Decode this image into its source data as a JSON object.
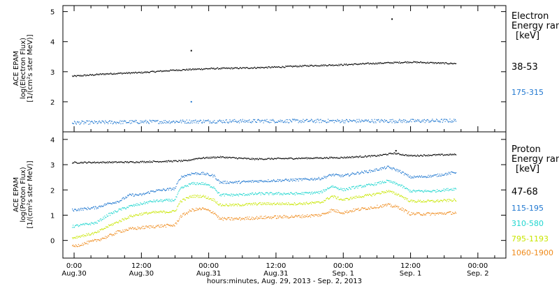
{
  "chart_data": [
    {
      "type": "scatter",
      "panel": "electron",
      "ylabel_lines": [
        "ACE EPAM",
        "log(Electron Flux)",
        "[1/(cm²s ster MeV)]"
      ],
      "legend_title": [
        "Electron",
        "Energy range",
        "[keV]"
      ],
      "ylim": [
        1.0,
        5.2
      ],
      "yticks": [
        2,
        3,
        4,
        5
      ],
      "series": [
        {
          "name": "38-53",
          "color": "#000000",
          "noise": 0.025,
          "x": [
            -0.3,
            0.0,
            6,
            12,
            18,
            24,
            30,
            36,
            42,
            48,
            54,
            60,
            66,
            68.2
          ],
          "y": [
            2.85,
            2.85,
            2.93,
            2.97,
            3.05,
            3.1,
            3.12,
            3.15,
            3.2,
            3.23,
            3.28,
            3.32,
            3.28,
            3.27
          ]
        },
        {
          "name": "175-315",
          "color": "#1f77d0",
          "noise": 0.06,
          "x": [
            -0.3,
            12,
            24,
            36,
            48,
            60,
            68.2
          ],
          "y": [
            1.3,
            1.33,
            1.35,
            1.36,
            1.36,
            1.36,
            1.37
          ]
        }
      ],
      "outliers": [
        {
          "series": "38-53",
          "x": 20.9,
          "y": 3.7
        },
        {
          "series": "38-53",
          "x": 56.7,
          "y": 4.75
        },
        {
          "series": "175-315",
          "x": 20.9,
          "y": 2.0
        }
      ]
    },
    {
      "type": "scatter",
      "panel": "proton",
      "ylabel_lines": [
        "ACE EPAM",
        "log(Proton Flux)",
        "[1/(cm²s ster MeV)]"
      ],
      "legend_title": [
        "Proton",
        "Energy range",
        "[keV]"
      ],
      "ylim": [
        -0.7,
        4.3
      ],
      "yticks": [
        0,
        1,
        2,
        3,
        4
      ],
      "series": [
        {
          "name": "47-68",
          "color": "#000000",
          "noise": 0.03,
          "x": [
            -0.3,
            10,
            20,
            22,
            26,
            32,
            40,
            48,
            54,
            57,
            60,
            64,
            68.2
          ],
          "y": [
            3.08,
            3.1,
            3.15,
            3.25,
            3.3,
            3.22,
            3.25,
            3.28,
            3.35,
            3.45,
            3.35,
            3.38,
            3.4
          ]
        },
        {
          "name": "115-195",
          "color": "#1f77d0",
          "noise": 0.05,
          "x": [
            -0.3,
            4,
            6,
            8,
            10,
            12,
            14,
            18,
            19,
            21,
            23,
            25,
            26,
            29,
            33,
            40,
            44,
            46,
            48,
            50,
            53,
            56,
            58,
            60,
            64,
            68.2
          ],
          "y": [
            1.2,
            1.3,
            1.45,
            1.55,
            1.8,
            1.8,
            1.95,
            2.05,
            2.5,
            2.65,
            2.65,
            2.55,
            2.3,
            2.3,
            2.35,
            2.4,
            2.45,
            2.6,
            2.55,
            2.65,
            2.75,
            2.9,
            2.75,
            2.5,
            2.55,
            2.7
          ]
        },
        {
          "name": "310-580",
          "color": "#1fd6cf",
          "noise": 0.05,
          "x": [
            -0.3,
            4,
            6,
            8,
            10,
            12,
            14,
            18,
            19,
            21,
            23,
            25,
            26,
            29,
            33,
            40,
            44,
            46,
            48,
            50,
            53,
            56,
            58,
            60,
            64,
            68.2
          ],
          "y": [
            0.55,
            0.7,
            1.0,
            1.2,
            1.35,
            1.45,
            1.55,
            1.6,
            2.05,
            2.25,
            2.25,
            2.1,
            1.8,
            1.8,
            1.85,
            1.85,
            1.9,
            2.15,
            2.0,
            2.1,
            2.2,
            2.35,
            2.2,
            1.95,
            1.95,
            2.05
          ]
        },
        {
          "name": "795-1193",
          "color": "#c8e600",
          "noise": 0.05,
          "x": [
            -0.3,
            4,
            6,
            8,
            10,
            12,
            14,
            18,
            19,
            21,
            23,
            25,
            26,
            29,
            33,
            40,
            44,
            46,
            48,
            50,
            53,
            56,
            58,
            60,
            64,
            68.2
          ],
          "y": [
            0.1,
            0.3,
            0.55,
            0.75,
            0.95,
            1.05,
            1.1,
            1.15,
            1.55,
            1.75,
            1.75,
            1.6,
            1.4,
            1.4,
            1.45,
            1.45,
            1.5,
            1.75,
            1.6,
            1.7,
            1.8,
            1.95,
            1.8,
            1.55,
            1.55,
            1.6
          ]
        },
        {
          "name": "1060-1900",
          "color": "#ef8a1a",
          "noise": 0.06,
          "x": [
            -0.3,
            4,
            6,
            8,
            10,
            12,
            14,
            18,
            19,
            21,
            23,
            25,
            26,
            29,
            33,
            40,
            44,
            46,
            48,
            50,
            53,
            56,
            58,
            60,
            64,
            68.2
          ],
          "y": [
            -0.25,
            0.0,
            0.15,
            0.35,
            0.45,
            0.5,
            0.55,
            0.6,
            0.95,
            1.2,
            1.25,
            1.1,
            0.85,
            0.85,
            0.9,
            0.95,
            1.0,
            1.2,
            1.1,
            1.2,
            1.3,
            1.4,
            1.3,
            1.05,
            1.05,
            1.1
          ]
        }
      ],
      "outliers": [
        {
          "series": "47-68",
          "x": 57.4,
          "y": 3.55
        }
      ]
    }
  ],
  "x_axis": {
    "unit_note": "hours since 00:00 Aug. 30, 2013",
    "xlim": [
      -2.0,
      77.0
    ],
    "major_ticks": [
      {
        "x": 0,
        "time": "0:00",
        "date": "Aug.30"
      },
      {
        "x": 12,
        "time": "12:00",
        "date": "Aug.30"
      },
      {
        "x": 24,
        "time": "00:00",
        "date": "Aug.31"
      },
      {
        "x": 36,
        "time": "12:00",
        "date": "Aug.31"
      },
      {
        "x": 48,
        "time": "00:00",
        "date": "Sep. 1"
      },
      {
        "x": 60,
        "time": "12:00",
        "date": "Sep. 1"
      },
      {
        "x": 72,
        "time": "00:00",
        "date": "Sep. 2"
      }
    ],
    "minor_every": 3,
    "label": "hours:minutes, Aug. 29, 2013 - Sep.  2, 2013"
  }
}
